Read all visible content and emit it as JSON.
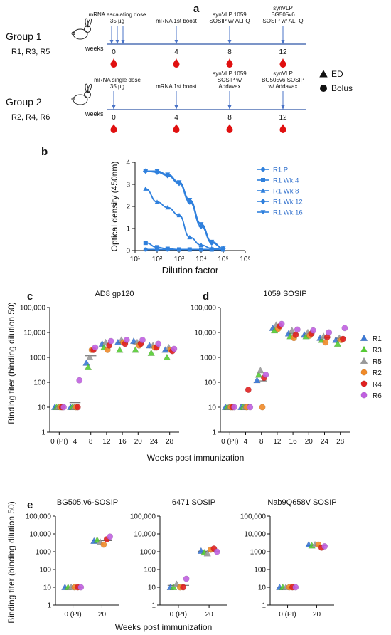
{
  "panel_a": {
    "label": "a",
    "groups": [
      {
        "name": "Group 1",
        "rabbits": "R1, R3, R5",
        "weeks_label": "weeks",
        "events": [
          {
            "week": "0",
            "text": [
              "mRNA escalating dose",
              "35 µg"
            ]
          },
          {
            "week": "4",
            "text": [
              "mRNA 1st boost"
            ]
          },
          {
            "week": "8",
            "text": [
              "synVLP 1059",
              "SOSIP w/ ALFQ"
            ]
          },
          {
            "week": "12",
            "text": [
              "synVLP",
              "BG505v6",
              "SOSIP w/ ALFQ"
            ]
          }
        ]
      },
      {
        "name": "Group 2",
        "rabbits": "R2, R4, R6",
        "weeks_label": "weeks",
        "events": [
          {
            "week": "0",
            "text": [
              "mRNA single dose",
              "35 µg"
            ]
          },
          {
            "week": "4",
            "text": [
              "mRNA 1st boost"
            ]
          },
          {
            "week": "8",
            "text": [
              "synVLP 1059",
              "SOSIP w/",
              "Addavax"
            ]
          },
          {
            "week": "12",
            "text": [
              "synVLP",
              "BG505v6 SOSIP",
              "w/ Addavax"
            ]
          }
        ]
      }
    ],
    "legend": [
      {
        "symbol": "triangle",
        "label": "ED"
      },
      {
        "symbol": "circle",
        "label": "Bolus"
      }
    ],
    "colors": {
      "arrow": "#4a73c7",
      "drop": "#e01010",
      "axis": "#2f56a8"
    }
  },
  "panel_b": {
    "label": "b",
    "chart_data": {
      "type": "line",
      "xlabel": "Dilution factor",
      "ylabel": "Optical density (450nm)",
      "xscale": "log",
      "xlim": [
        10,
        1000000
      ],
      "ylim": [
        0,
        4
      ],
      "x_ticks": [
        "10¹",
        "10²",
        "10³",
        "10⁴",
        "10⁵",
        "10⁶"
      ],
      "y_ticks": [
        "0",
        "1",
        "2",
        "3",
        "4"
      ],
      "legend_position": "right",
      "color": "#2f80dd",
      "series": [
        {
          "name": "R1 PI",
          "marker": "circle",
          "x": [
            30,
            100,
            300,
            1000,
            3000,
            10000,
            30000,
            100000
          ],
          "y": [
            0.05,
            0.05,
            0.05,
            0.05,
            0.05,
            0.05,
            0.05,
            0.05
          ]
        },
        {
          "name": "R1 Wk 4",
          "marker": "square",
          "x": [
            30,
            100,
            300,
            1000,
            3000,
            10000,
            30000,
            100000
          ],
          "y": [
            0.35,
            0.15,
            0.08,
            0.05,
            0.05,
            0.05,
            0.05,
            0.05
          ]
        },
        {
          "name": "R1 Wk 8",
          "marker": "triangle",
          "x": [
            30,
            100,
            300,
            1000,
            3000,
            10000,
            30000,
            100000
          ],
          "y": [
            2.8,
            2.2,
            1.95,
            1.6,
            0.6,
            0.25,
            0.1,
            0.05
          ]
        },
        {
          "name": "R1 Wk 12",
          "marker": "diamond",
          "x": [
            30,
            100,
            300,
            1000,
            3000,
            10000,
            30000,
            100000
          ],
          "y": [
            3.6,
            3.55,
            3.4,
            3.05,
            2.2,
            1.1,
            0.35,
            0.1
          ]
        },
        {
          "name": "R1 Wk 16",
          "marker": "triangle-down",
          "x": [
            30,
            100,
            300,
            1000,
            3000,
            10000,
            30000,
            100000
          ],
          "y": [
            3.6,
            3.6,
            3.45,
            3.1,
            2.3,
            1.2,
            0.4,
            0.1
          ]
        }
      ]
    }
  },
  "titer_panels": {
    "ylabel": "Binding titer (binding dilution 50)",
    "xlabel": "Weeks post immunization",
    "y_ticks": [
      "1",
      "10",
      "100",
      "1000",
      "10,000",
      "100,000"
    ],
    "legend": [
      {
        "name": "R1",
        "marker": "triangle",
        "color": "#3a78d8"
      },
      {
        "name": "R3",
        "marker": "triangle",
        "color": "#55cc33"
      },
      {
        "name": "R5",
        "marker": "triangle",
        "color": "#999999"
      },
      {
        "name": "R2",
        "marker": "circle",
        "color": "#f08a28"
      },
      {
        "name": "R4",
        "marker": "circle",
        "color": "#e02020"
      },
      {
        "name": "R6",
        "marker": "circle",
        "color": "#c060e0"
      }
    ]
  },
  "chart_data": [
    {
      "panel": "c",
      "type": "scatter",
      "title": "AD8 gp120",
      "yscale": "log",
      "ylim": [
        1,
        100000
      ],
      "categories": [
        "0 (PI)",
        "4",
        "8",
        "12",
        "16",
        "20",
        "24",
        "28"
      ],
      "series": [
        {
          "name": "R1",
          "values": [
            10,
            10,
            600,
            3500,
            4000,
            4500,
            3000,
            2000
          ]
        },
        {
          "name": "R3",
          "values": [
            10,
            10,
            400,
            2500,
            2000,
            2000,
            1500,
            1000
          ]
        },
        {
          "name": "R5",
          "values": [
            10,
            10,
            1000,
            4000,
            5000,
            4000,
            3000,
            2500
          ]
        },
        {
          "name": "R2",
          "values": [
            10,
            10,
            2000,
            2000,
            4000,
            3000,
            2500,
            2000
          ]
        },
        {
          "name": "R4",
          "values": [
            10,
            10,
            2000,
            3000,
            3500,
            3500,
            2500,
            1800
          ]
        },
        {
          "name": "R6",
          "values": [
            10,
            120,
            2500,
            4500,
            5000,
            5000,
            3500,
            2200
          ]
        }
      ]
    },
    {
      "panel": "d",
      "type": "scatter",
      "title": "1059 SOSIP",
      "yscale": "log",
      "ylim": [
        1,
        100000
      ],
      "categories": [
        "0 (PI)",
        "4",
        "8",
        "12",
        "16",
        "20",
        "24",
        "28"
      ],
      "series": [
        {
          "name": "R1",
          "values": [
            10,
            10,
            120,
            15000,
            9000,
            8000,
            6000,
            5000
          ]
        },
        {
          "name": "R3",
          "values": [
            10,
            10,
            200,
            12000,
            7000,
            7000,
            5000,
            3500
          ]
        },
        {
          "name": "R5",
          "values": [
            10,
            10,
            300,
            20000,
            12000,
            10000,
            7000,
            6000
          ]
        },
        {
          "name": "R2",
          "values": [
            10,
            10,
            10,
            14000,
            6000,
            7500,
            4000,
            5000
          ]
        },
        {
          "name": "R4",
          "values": [
            10,
            50,
            150,
            18000,
            8000,
            9000,
            6500,
            5500
          ]
        },
        {
          "name": "R6",
          "values": [
            10,
            10,
            200,
            22000,
            13000,
            12000,
            10000,
            15000
          ]
        }
      ]
    },
    {
      "panel": "e",
      "type": "scatter",
      "title": "BG505.v6-SOSIP",
      "yscale": "log",
      "ylim": [
        1,
        100000
      ],
      "categories": [
        "0 (PI)",
        "20"
      ],
      "series": [
        {
          "name": "R1",
          "values": [
            10,
            4000
          ]
        },
        {
          "name": "R3",
          "values": [
            10,
            4500
          ]
        },
        {
          "name": "R5",
          "values": [
            10,
            3500
          ]
        },
        {
          "name": "R2",
          "values": [
            10,
            2500
          ]
        },
        {
          "name": "R4",
          "values": [
            10,
            5000
          ]
        },
        {
          "name": "R6",
          "values": [
            10,
            7000
          ]
        }
      ]
    },
    {
      "panel": "e",
      "type": "scatter",
      "title": "6471 SOSIP",
      "yscale": "log",
      "ylim": [
        1,
        100000
      ],
      "categories": [
        "0 (PI)",
        "20"
      ],
      "series": [
        {
          "name": "R1",
          "values": [
            10,
            1100
          ]
        },
        {
          "name": "R3",
          "values": [
            10,
            900
          ]
        },
        {
          "name": "R5",
          "values": [
            15,
            800
          ]
        },
        {
          "name": "R2",
          "values": [
            10,
            1300
          ]
        },
        {
          "name": "R4",
          "values": [
            10,
            1500
          ]
        },
        {
          "name": "R6",
          "values": [
            30,
            1000
          ]
        }
      ]
    },
    {
      "panel": "e",
      "type": "scatter",
      "title": "Nab9Q658V SOSIP",
      "yscale": "log",
      "ylim": [
        1,
        100000
      ],
      "categories": [
        "0 (PI)",
        "20"
      ],
      "series": [
        {
          "name": "R1",
          "values": [
            10,
            2500
          ]
        },
        {
          "name": "R3",
          "values": [
            10,
            2200
          ]
        },
        {
          "name": "R5",
          "values": [
            10,
            2500
          ]
        },
        {
          "name": "R2",
          "values": [
            10,
            2500
          ]
        },
        {
          "name": "R4",
          "values": [
            10,
            1700
          ]
        },
        {
          "name": "R6",
          "values": [
            10,
            2000
          ]
        }
      ]
    }
  ]
}
